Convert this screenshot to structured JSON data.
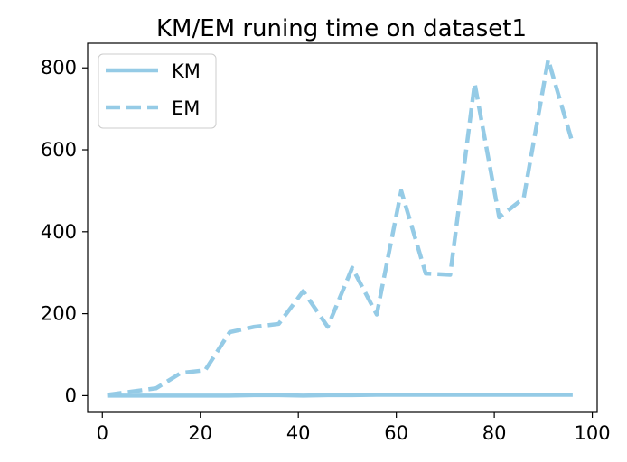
{
  "chart_data": {
    "type": "line",
    "title": "KM/EM runing time on dataset1",
    "xlabel": "",
    "ylabel": "",
    "xlim": [
      -3,
      101
    ],
    "ylim": [
      -41,
      860
    ],
    "xticks": [
      0,
      20,
      40,
      60,
      80,
      100
    ],
    "yticks": [
      0,
      200,
      400,
      600,
      800
    ],
    "grid": false,
    "legend_position": "top-left",
    "series": [
      {
        "name": "KM",
        "style": "solid",
        "color": "#95cbe6",
        "x": [
          1,
          6,
          11,
          16,
          21,
          26,
          31,
          36,
          41,
          46,
          51,
          56,
          61,
          66,
          71,
          76,
          81,
          86,
          91,
          96
        ],
        "y": [
          0,
          0,
          0,
          0,
          0,
          0,
          1,
          1,
          0,
          1,
          1,
          2,
          2,
          2,
          2,
          2,
          2,
          2,
          2,
          2
        ]
      },
      {
        "name": "EM",
        "style": "dashed",
        "color": "#95cbe6",
        "x": [
          1,
          6,
          11,
          16,
          21,
          26,
          31,
          36,
          41,
          46,
          51,
          56,
          61,
          66,
          71,
          76,
          81,
          86,
          91,
          96
        ],
        "y": [
          2,
          10,
          18,
          55,
          62,
          155,
          168,
          175,
          255,
          168,
          312,
          198,
          500,
          298,
          295,
          762,
          435,
          482,
          820,
          615
        ]
      }
    ]
  }
}
